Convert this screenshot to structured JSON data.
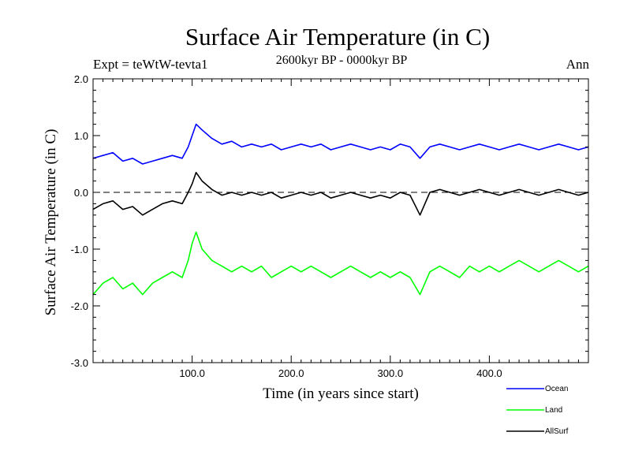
{
  "header": {
    "title": "Surface Air Temperature (in C)",
    "expt": "Expt = teWtW-tevta1",
    "period": "2600kyr BP - 0000kyr BP",
    "season": "Ann"
  },
  "chart_data": {
    "type": "line",
    "title": "Surface Air Temperature (in C)",
    "xlabel": "Time (in years since start)",
    "ylabel": "Surface Air Temperature (in C)",
    "xlim": [
      0,
      500
    ],
    "ylim": [
      -3.0,
      2.0
    ],
    "x_ticks": [
      100,
      200,
      300,
      400
    ],
    "x_tick_labels": [
      "100.0",
      "200.0",
      "300.0",
      "400.0"
    ],
    "y_ticks": [
      2.0,
      1.0,
      0.0,
      -1.0,
      -2.0,
      -3.0
    ],
    "y_tick_labels": [
      "2.0",
      "1.0",
      "0.0",
      "-1.0",
      "-2.0",
      "-3.0"
    ],
    "reference_line": {
      "y": 0.0,
      "style": "dashed"
    },
    "legend_position": "bottom-right, outside plot",
    "series": [
      {
        "name": "Ocean",
        "color": "#0000ff",
        "x": [
          0,
          10,
          20,
          30,
          40,
          50,
          60,
          70,
          80,
          90,
          96,
          100,
          104,
          110,
          120,
          130,
          140,
          150,
          160,
          170,
          180,
          190,
          200,
          210,
          220,
          230,
          240,
          250,
          260,
          270,
          280,
          290,
          300,
          310,
          320,
          330,
          340,
          350,
          360,
          370,
          380,
          390,
          400,
          410,
          420,
          430,
          440,
          450,
          460,
          470,
          480,
          490,
          500
        ],
        "values": [
          0.6,
          0.65,
          0.7,
          0.55,
          0.6,
          0.5,
          0.55,
          0.6,
          0.65,
          0.6,
          0.8,
          1.0,
          1.2,
          1.1,
          0.95,
          0.85,
          0.9,
          0.8,
          0.85,
          0.8,
          0.85,
          0.75,
          0.8,
          0.85,
          0.8,
          0.85,
          0.75,
          0.8,
          0.85,
          0.8,
          0.75,
          0.8,
          0.75,
          0.85,
          0.8,
          0.6,
          0.8,
          0.85,
          0.8,
          0.75,
          0.8,
          0.85,
          0.8,
          0.75,
          0.8,
          0.85,
          0.8,
          0.75,
          0.8,
          0.85,
          0.8,
          0.75,
          0.8
        ]
      },
      {
        "name": "Land",
        "color": "#00ff00",
        "x": [
          0,
          10,
          20,
          30,
          40,
          50,
          60,
          70,
          80,
          90,
          96,
          100,
          104,
          110,
          120,
          130,
          140,
          150,
          160,
          170,
          180,
          190,
          200,
          210,
          220,
          230,
          240,
          250,
          260,
          270,
          280,
          290,
          300,
          310,
          320,
          330,
          340,
          350,
          360,
          370,
          380,
          390,
          400,
          410,
          420,
          430,
          440,
          450,
          460,
          470,
          480,
          490,
          500
        ],
        "values": [
          -1.8,
          -1.6,
          -1.5,
          -1.7,
          -1.6,
          -1.8,
          -1.6,
          -1.5,
          -1.4,
          -1.5,
          -1.2,
          -0.9,
          -0.7,
          -1.0,
          -1.2,
          -1.3,
          -1.4,
          -1.3,
          -1.4,
          -1.3,
          -1.5,
          -1.4,
          -1.3,
          -1.4,
          -1.3,
          -1.4,
          -1.5,
          -1.4,
          -1.3,
          -1.4,
          -1.5,
          -1.4,
          -1.5,
          -1.4,
          -1.5,
          -1.8,
          -1.4,
          -1.3,
          -1.4,
          -1.5,
          -1.3,
          -1.4,
          -1.3,
          -1.4,
          -1.3,
          -1.2,
          -1.3,
          -1.4,
          -1.3,
          -1.2,
          -1.3,
          -1.4,
          -1.3
        ]
      },
      {
        "name": "AllSurf",
        "color": "#000000",
        "x": [
          0,
          10,
          20,
          30,
          40,
          50,
          60,
          70,
          80,
          90,
          96,
          100,
          104,
          110,
          120,
          130,
          140,
          150,
          160,
          170,
          180,
          190,
          200,
          210,
          220,
          230,
          240,
          250,
          260,
          270,
          280,
          290,
          300,
          310,
          320,
          330,
          340,
          350,
          360,
          370,
          380,
          390,
          400,
          410,
          420,
          430,
          440,
          450,
          460,
          470,
          480,
          490,
          500
        ],
        "values": [
          -0.3,
          -0.2,
          -0.15,
          -0.3,
          -0.25,
          -0.4,
          -0.3,
          -0.2,
          -0.15,
          -0.2,
          0.0,
          0.15,
          0.35,
          0.2,
          0.05,
          -0.05,
          0.0,
          -0.05,
          0.0,
          -0.05,
          0.0,
          -0.1,
          -0.05,
          0.0,
          -0.05,
          0.0,
          -0.1,
          -0.05,
          0.0,
          -0.05,
          -0.1,
          -0.05,
          -0.1,
          0.0,
          -0.05,
          -0.4,
          0.0,
          0.05,
          0.0,
          -0.05,
          0.0,
          0.05,
          0.0,
          -0.05,
          0.0,
          0.05,
          0.0,
          -0.05,
          0.0,
          0.05,
          0.0,
          -0.05,
          0.0
        ]
      }
    ]
  }
}
